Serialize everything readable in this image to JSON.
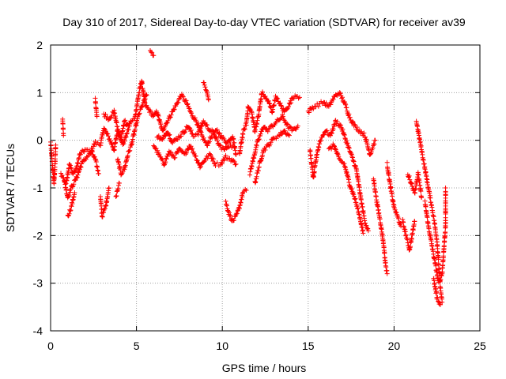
{
  "chart_data": {
    "type": "scatter",
    "title": "Day 310 of 2017, Sidereal Day-to-day VTEC variation (SDTVAR) for receiver av39",
    "xlabel": "GPS time / hours",
    "ylabel": "SDTVAR / TECUs",
    "xlim": [
      0,
      25
    ],
    "ylim": [
      -4,
      2
    ],
    "xticks": [
      "0",
      "5",
      "10",
      "15",
      "20",
      "25"
    ],
    "yticks": [
      "-4",
      "-3",
      "-2",
      "-1",
      "0",
      "1",
      "2"
    ],
    "grid": true,
    "marker": "+",
    "color": "#ff0000",
    "series": [
      {
        "name": "SDTVAR",
        "tracks": [
          [
            [
              0,
              -0.05
            ],
            [
              0.1,
              -0.5
            ],
            [
              0.2,
              -0.9
            ],
            [
              0.25,
              -0.6
            ],
            [
              0.3,
              -0.1
            ]
          ],
          [
            [
              0.6,
              -0.7
            ],
            [
              0.9,
              -0.9
            ],
            [
              1.1,
              -0.5
            ],
            [
              1.3,
              -0.7
            ],
            [
              1.5,
              -0.6
            ],
            [
              1.7,
              -0.3
            ],
            [
              2.0,
              -0.2
            ],
            [
              2.3,
              -0.25
            ],
            [
              2.6,
              -0.05
            ],
            [
              2.9,
              -0.1
            ],
            [
              3.1,
              0.25
            ],
            [
              3.4,
              0.05
            ],
            [
              3.7,
              -0.2
            ],
            [
              3.9,
              0.2
            ],
            [
              4.1,
              0.05
            ],
            [
              4.3,
              0.4
            ],
            [
              4.5,
              0.3
            ],
            [
              4.7,
              0.4
            ],
            [
              4.9,
              0.45
            ],
            [
              5.1,
              0.9
            ],
            [
              5.3,
              1.25
            ],
            [
              5.5,
              0.75
            ],
            [
              5.8,
              0.6
            ],
            [
              6.0,
              0.5
            ],
            [
              6.2,
              0.6
            ],
            [
              6.5,
              0.2
            ],
            [
              6.8,
              0.4
            ],
            [
              7.1,
              0.6
            ],
            [
              7.4,
              0.8
            ],
            [
              7.6,
              0.95
            ],
            [
              7.9,
              0.8
            ],
            [
              8.2,
              0.55
            ],
            [
              8.5,
              0.4
            ],
            [
              8.8,
              0.1
            ],
            [
              9.1,
              -0.1
            ],
            [
              9.4,
              0.1
            ],
            [
              9.7,
              0.2
            ],
            [
              10.0,
              0.05
            ],
            [
              10.3,
              -0.05
            ],
            [
              10.6,
              0.1
            ],
            [
              10.8,
              -0.3
            ]
          ],
          [
            [
              0.8,
              -0.85
            ],
            [
              1.0,
              -1.2
            ],
            [
              1.2,
              -1.0
            ],
            [
              1.5,
              -0.8
            ],
            [
              1.8,
              -0.5
            ],
            [
              2.1,
              -0.35
            ],
            [
              2.4,
              -0.25
            ],
            [
              2.6,
              -0.4
            ],
            [
              2.8,
              -0.7
            ]
          ],
          [
            [
              1.0,
              -1.6
            ],
            [
              1.2,
              -1.4
            ],
            [
              1.4,
              -1.1
            ]
          ],
          [
            [
              2.9,
              -1.2
            ],
            [
              3.0,
              -1.6
            ],
            [
              3.2,
              -1.4
            ],
            [
              3.4,
              -1.0
            ]
          ],
          [
            [
              3.1,
              0.55
            ],
            [
              3.4,
              0.45
            ],
            [
              3.7,
              0.6
            ],
            [
              3.9,
              0.25
            ],
            [
              4.2,
              -0.1
            ],
            [
              4.4,
              0.1
            ],
            [
              4.6,
              0.3
            ]
          ],
          [
            [
              3.9,
              -0.4
            ],
            [
              4.1,
              -0.7
            ],
            [
              4.3,
              -0.6
            ],
            [
              4.5,
              -0.3
            ],
            [
              4.7,
              -0.1
            ],
            [
              4.9,
              0.2
            ],
            [
              5.1,
              0.5
            ],
            [
              5.3,
              0.7
            ],
            [
              5.6,
              0.95
            ]
          ],
          [
            [
              3.8,
              -1.2
            ],
            [
              4.0,
              -0.9
            ]
          ],
          [
            [
              2.6,
              0.85
            ],
            [
              2.7,
              0.5
            ]
          ],
          [
            [
              0.7,
              0.45
            ],
            [
              0.75,
              0.1
            ]
          ],
          [
            [
              5.8,
              1.85
            ],
            [
              6.0,
              1.78
            ]
          ],
          [
            [
              6.0,
              -0.1
            ],
            [
              6.3,
              -0.3
            ],
            [
              6.6,
              -0.5
            ],
            [
              6.9,
              -0.25
            ],
            [
              7.2,
              -0.35
            ],
            [
              7.5,
              -0.2
            ],
            [
              7.8,
              -0.3
            ],
            [
              8.1,
              -0.1
            ],
            [
              8.4,
              -0.3
            ],
            [
              8.7,
              -0.55
            ],
            [
              9.0,
              -0.4
            ],
            [
              9.3,
              -0.3
            ],
            [
              9.6,
              -0.5
            ],
            [
              9.9,
              -0.5
            ],
            [
              10.2,
              -0.35
            ],
            [
              10.5,
              -0.4
            ],
            [
              10.8,
              -0.5
            ]
          ],
          [
            [
              6.2,
              0.1
            ],
            [
              6.5,
              0.0
            ],
            [
              6.8,
              0.2
            ],
            [
              7.1,
              -0.05
            ],
            [
              7.4,
              0.05
            ],
            [
              7.7,
              0.15
            ],
            [
              8.0,
              0.3
            ],
            [
              8.3,
              0.1
            ],
            [
              8.6,
              0.15
            ],
            [
              8.9,
              0.4
            ],
            [
              9.2,
              0.25
            ],
            [
              9.5,
              0.15
            ],
            [
              9.8,
              -0.1
            ],
            [
              10.1,
              -0.2
            ],
            [
              10.4,
              -0.1
            ],
            [
              10.7,
              -0.15
            ]
          ],
          [
            [
              8.9,
              1.2
            ],
            [
              9.1,
              1.05
            ],
            [
              9.2,
              0.85
            ]
          ],
          [
            [
              10.2,
              -1.3
            ],
            [
              10.4,
              -1.55
            ],
            [
              10.6,
              -1.7
            ],
            [
              10.8,
              -1.6
            ],
            [
              11.0,
              -1.4
            ],
            [
              11.2,
              -1.1
            ],
            [
              11.4,
              -1.05
            ]
          ],
          [
            [
              11.0,
              -0.3
            ],
            [
              11.2,
              0.15
            ],
            [
              11.4,
              0.35
            ],
            [
              11.5,
              0.7
            ],
            [
              11.7,
              0.6
            ],
            [
              11.9,
              0.2
            ],
            [
              12.1,
              0.5
            ],
            [
              12.3,
              1.0
            ],
            [
              12.5,
              0.9
            ],
            [
              12.7,
              0.8
            ],
            [
              12.9,
              0.6
            ],
            [
              13.1,
              0.9
            ],
            [
              13.3,
              0.8
            ],
            [
              13.6,
              0.6
            ],
            [
              13.9,
              0.75
            ],
            [
              14.1,
              0.9
            ],
            [
              14.3,
              0.95
            ],
            [
              14.5,
              0.9
            ]
          ],
          [
            [
              11.6,
              -0.7
            ],
            [
              11.8,
              -0.4
            ],
            [
              12.0,
              -0.1
            ],
            [
              12.2,
              0.1
            ],
            [
              12.4,
              0.3
            ],
            [
              12.6,
              0.2
            ],
            [
              12.9,
              0.3
            ],
            [
              13.2,
              0.4
            ],
            [
              13.5,
              0.5
            ],
            [
              13.8,
              0.3
            ],
            [
              14.1,
              0.2
            ],
            [
              14.4,
              0.3
            ]
          ],
          [
            [
              11.9,
              -0.9
            ],
            [
              12.1,
              -0.6
            ],
            [
              12.4,
              -0.2
            ],
            [
              12.7,
              -0.1
            ],
            [
              13.0,
              0.05
            ],
            [
              13.3,
              0.1
            ],
            [
              13.6,
              0.2
            ],
            [
              13.9,
              0.1
            ]
          ],
          [
            [
              15.0,
              0.6
            ],
            [
              15.3,
              0.7
            ],
            [
              15.6,
              0.75
            ],
            [
              15.9,
              0.8
            ],
            [
              16.2,
              0.7
            ],
            [
              16.5,
              0.9
            ],
            [
              16.8,
              1.0
            ],
            [
              17.1,
              0.8
            ],
            [
              17.4,
              0.5
            ],
            [
              17.7,
              0.3
            ],
            [
              18.0,
              0.2
            ],
            [
              18.3,
              0.1
            ],
            [
              18.6,
              -0.3
            ],
            [
              18.9,
              0.0
            ]
          ],
          [
            [
              15.1,
              -0.2
            ],
            [
              15.3,
              -0.8
            ],
            [
              15.5,
              -0.3
            ],
            [
              15.7,
              0.0
            ],
            [
              16.0,
              0.2
            ],
            [
              16.3,
              0.1
            ],
            [
              16.6,
              0.4
            ],
            [
              16.9,
              0.3
            ],
            [
              17.2,
              0.0
            ],
            [
              17.5,
              -0.3
            ],
            [
              17.8,
              -0.6
            ],
            [
              18.1,
              -1.3
            ],
            [
              18.3,
              -1.7
            ],
            [
              18.5,
              -1.9
            ]
          ],
          [
            [
              16.2,
              -0.2
            ],
            [
              16.5,
              -0.1
            ],
            [
              16.8,
              -0.4
            ],
            [
              17.1,
              -0.5
            ],
            [
              17.4,
              -0.9
            ],
            [
              17.7,
              -1.2
            ],
            [
              18.0,
              -1.6
            ],
            [
              18.2,
              -1.95
            ]
          ],
          [
            [
              18.8,
              -0.8
            ],
            [
              19.0,
              -1.3
            ],
            [
              19.2,
              -1.7
            ],
            [
              19.4,
              -2.2
            ],
            [
              19.5,
              -2.6
            ],
            [
              19.6,
              -2.8
            ]
          ],
          [
            [
              19.6,
              -0.5
            ],
            [
              19.8,
              -1.0
            ],
            [
              20.0,
              -1.4
            ],
            [
              20.2,
              -1.6
            ],
            [
              20.4,
              -1.8
            ]
          ],
          [
            [
              20.5,
              -1.7
            ],
            [
              20.7,
              -2.0
            ],
            [
              20.9,
              -2.3
            ],
            [
              21.0,
              -2.1
            ],
            [
              21.2,
              -1.7
            ]
          ],
          [
            [
              20.8,
              -0.7
            ],
            [
              21.0,
              -0.9
            ],
            [
              21.2,
              -1.1
            ],
            [
              21.4,
              -0.7
            ],
            [
              21.6,
              -1.2
            ]
          ],
          [
            [
              21.3,
              0.4
            ],
            [
              21.5,
              0.0
            ],
            [
              21.7,
              -0.4
            ],
            [
              21.9,
              -0.8
            ],
            [
              22.1,
              -1.2
            ],
            [
              22.3,
              -1.6
            ],
            [
              22.5,
              -2.1
            ],
            [
              22.6,
              -2.6
            ],
            [
              22.7,
              -3.1
            ],
            [
              22.8,
              -3.4
            ]
          ],
          [
            [
              21.8,
              -1.3
            ],
            [
              22.0,
              -1.8
            ],
            [
              22.2,
              -2.2
            ],
            [
              22.4,
              -2.6
            ],
            [
              22.6,
              -3.0
            ],
            [
              22.8,
              -2.8
            ],
            [
              22.9,
              -2.3
            ],
            [
              23.0,
              -1.8
            ],
            [
              23.0,
              -1.3
            ],
            [
              23.0,
              -1.0
            ]
          ],
          [
            [
              22.3,
              -2.9
            ],
            [
              22.5,
              -3.3
            ],
            [
              22.7,
              -3.45
            ]
          ]
        ]
      }
    ]
  }
}
